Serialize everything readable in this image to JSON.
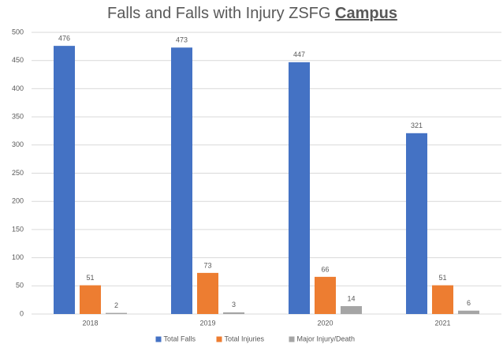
{
  "chart_data": {
    "type": "bar",
    "title": "Falls and Falls with Injury ZSFG",
    "title_emphasis": "Campus",
    "categories": [
      "2018",
      "2019",
      "2020",
      "2021"
    ],
    "series": [
      {
        "name": "Total Falls",
        "color": "#4472c4",
        "values": [
          476,
          473,
          447,
          321
        ]
      },
      {
        "name": "Total Injuries",
        "color": "#ed7d31",
        "values": [
          51,
          73,
          66,
          51
        ]
      },
      {
        "name": "Major Injury/Death",
        "color": "#a5a5a5",
        "values": [
          2,
          3,
          14,
          6
        ]
      }
    ],
    "ylim": [
      0,
      500
    ],
    "yticks": [
      0,
      50,
      100,
      150,
      200,
      250,
      300,
      350,
      400,
      450,
      500
    ],
    "grid": true,
    "legend": "bottom"
  }
}
